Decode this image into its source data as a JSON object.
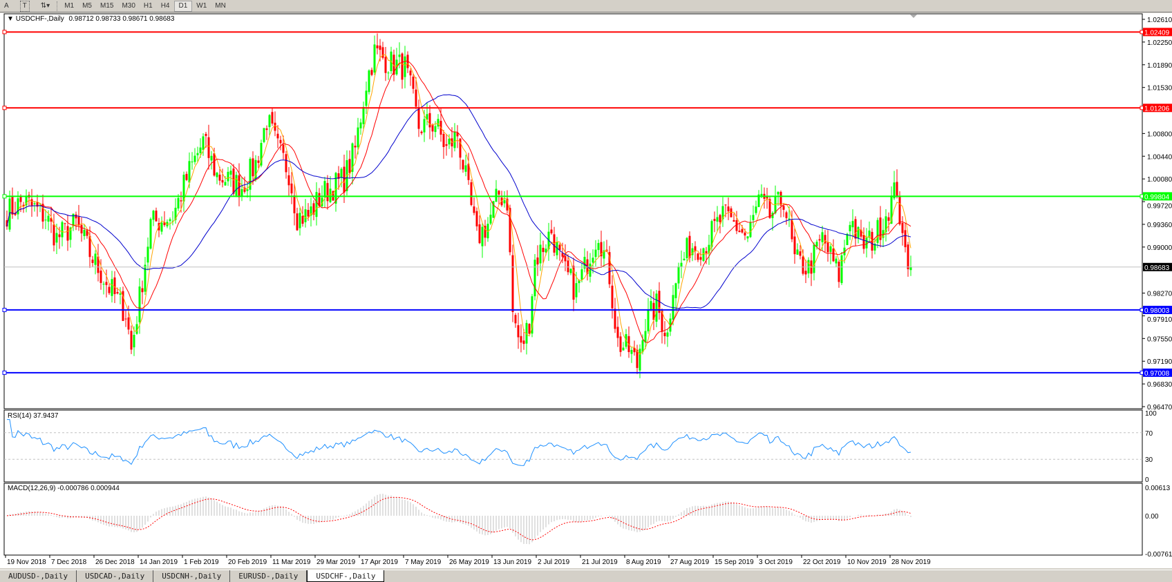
{
  "toolbar": {
    "tools": [
      "A",
      "T"
    ],
    "timeframes": [
      "M1",
      "M5",
      "M15",
      "M30",
      "H1",
      "H4",
      "D1",
      "W1",
      "MN"
    ],
    "active": "D1"
  },
  "chart": {
    "title": "USDCHF-,Daily",
    "ohlc": "0.98712 0.98733 0.98671 0.98683",
    "price_axis": [
      "1.02610",
      "1.02250",
      "1.01890",
      "1.01530",
      "1.00800",
      "1.00440",
      "1.00080",
      "0.99720",
      "0.99360",
      "0.99000",
      "0.98270",
      "0.97910",
      "0.97550",
      "0.97190",
      "0.96830",
      "0.96470"
    ],
    "price_range": [
      0.9647,
      1.0261
    ],
    "current_price": "0.98683",
    "hlines": [
      {
        "value": "1.02409",
        "color": "#ff0000"
      },
      {
        "value": "1.01206",
        "color": "#ff0000"
      },
      {
        "value": "0.99804",
        "color": "#00ff00"
      },
      {
        "value": "0.98003",
        "color": "#0000ff"
      },
      {
        "value": "0.97008",
        "color": "#0000ff"
      }
    ],
    "colors": {
      "bull": "#00ff00",
      "bear": "#ff0000",
      "ma_fast": "#ffa500",
      "ma_mid": "#ff0000",
      "ma_slow": "#0000cd"
    },
    "price_anchors": [
      [
        0,
        0.9955
      ],
      [
        6,
        0.9973
      ],
      [
        14,
        0.9949
      ],
      [
        18,
        0.9914
      ],
      [
        25,
        0.9937
      ],
      [
        30,
        0.989
      ],
      [
        36,
        0.9843
      ],
      [
        43,
        0.9796
      ],
      [
        45,
        0.9737
      ],
      [
        48,
        0.9819
      ],
      [
        52,
        0.9937
      ],
      [
        60,
        0.9949
      ],
      [
        66,
        1.002
      ],
      [
        71,
        1.0067
      ],
      [
        76,
        1.0014
      ],
      [
        85,
        0.9996
      ],
      [
        90,
        1.0032
      ],
      [
        94,
        1.0102
      ],
      [
        98,
        1.0055
      ],
      [
        102,
        1.002
      ],
      [
        105,
        0.9949
      ],
      [
        109,
        0.9949
      ],
      [
        114,
        0.9984
      ],
      [
        122,
        1.0008
      ],
      [
        126,
        1.0055
      ],
      [
        130,
        1.0161
      ],
      [
        133,
        1.0209
      ],
      [
        139,
        1.0191
      ],
      [
        144,
        1.0185
      ],
      [
        146,
        1.015
      ],
      [
        149,
        1.0091
      ],
      [
        155,
        1.0096
      ],
      [
        159,
        1.0055
      ],
      [
        163,
        1.0079
      ],
      [
        167,
        0.9984
      ],
      [
        170,
        0.9914
      ],
      [
        174,
        0.9937
      ],
      [
        178,
        0.9984
      ],
      [
        181,
        0.9973
      ],
      [
        183,
        0.9796
      ],
      [
        186,
        0.9737
      ],
      [
        189,
        0.9784
      ],
      [
        191,
        0.9878
      ],
      [
        197,
        0.9925
      ],
      [
        201,
        0.9866
      ],
      [
        206,
        0.9831
      ],
      [
        212,
        0.9902
      ],
      [
        214,
        0.9925
      ],
      [
        218,
        0.9855
      ],
      [
        221,
        0.9748
      ],
      [
        225,
        0.9737
      ],
      [
        228,
        0.9713
      ],
      [
        230,
        0.9772
      ],
      [
        235,
        0.9807
      ],
      [
        239,
        0.976
      ],
      [
        241,
        0.9843
      ],
      [
        247,
        0.9902
      ],
      [
        252,
        0.9902
      ],
      [
        259,
        0.9949
      ],
      [
        263,
        0.9937
      ],
      [
        268,
        0.9914
      ],
      [
        272,
        0.9973
      ],
      [
        276,
        0.9949
      ],
      [
        281,
        0.9978
      ],
      [
        285,
        0.9878
      ],
      [
        290,
        0.9866
      ],
      [
        295,
        0.9914
      ],
      [
        301,
        0.9855
      ],
      [
        305,
        0.9949
      ],
      [
        309,
        0.9902
      ],
      [
        314,
        0.9914
      ],
      [
        320,
        0.9973
      ],
      [
        322,
        0.9996
      ],
      [
        324,
        0.9902
      ],
      [
        327,
        0.98683
      ]
    ]
  },
  "rsi": {
    "label": "RSI(14) 37.9437",
    "axis": [
      "100",
      "70",
      "30",
      "0"
    ],
    "color": "#1e90ff"
  },
  "macd": {
    "label": "MACD(12,26,9) -0.000786 0.000944",
    "axis": [
      "0.00613",
      "0.00",
      "-0.007612"
    ]
  },
  "dates": [
    "19 Nov 2018",
    "7 Dec 2018",
    "26 Dec 2018",
    "14 Jan 2019",
    "1 Feb 2019",
    "20 Feb 2019",
    "11 Mar 2019",
    "29 Mar 2019",
    "17 Apr 2019",
    "7 May 2019",
    "26 May 2019",
    "13 Jun 2019",
    "2 Jul 2019",
    "21 Jul 2019",
    "8 Aug 2019",
    "27 Aug 2019",
    "15 Sep 2019",
    "3 Oct 2019",
    "22 Oct 2019",
    "10 Nov 2019",
    "28 Nov 2019"
  ],
  "tabs": [
    {
      "label": "AUDUSD-,Daily"
    },
    {
      "label": "USDCAD-,Daily"
    },
    {
      "label": "USDCNH-,Daily"
    },
    {
      "label": "EURUSD-,Daily"
    },
    {
      "label": "USDCHF-,Daily",
      "active": true
    }
  ]
}
